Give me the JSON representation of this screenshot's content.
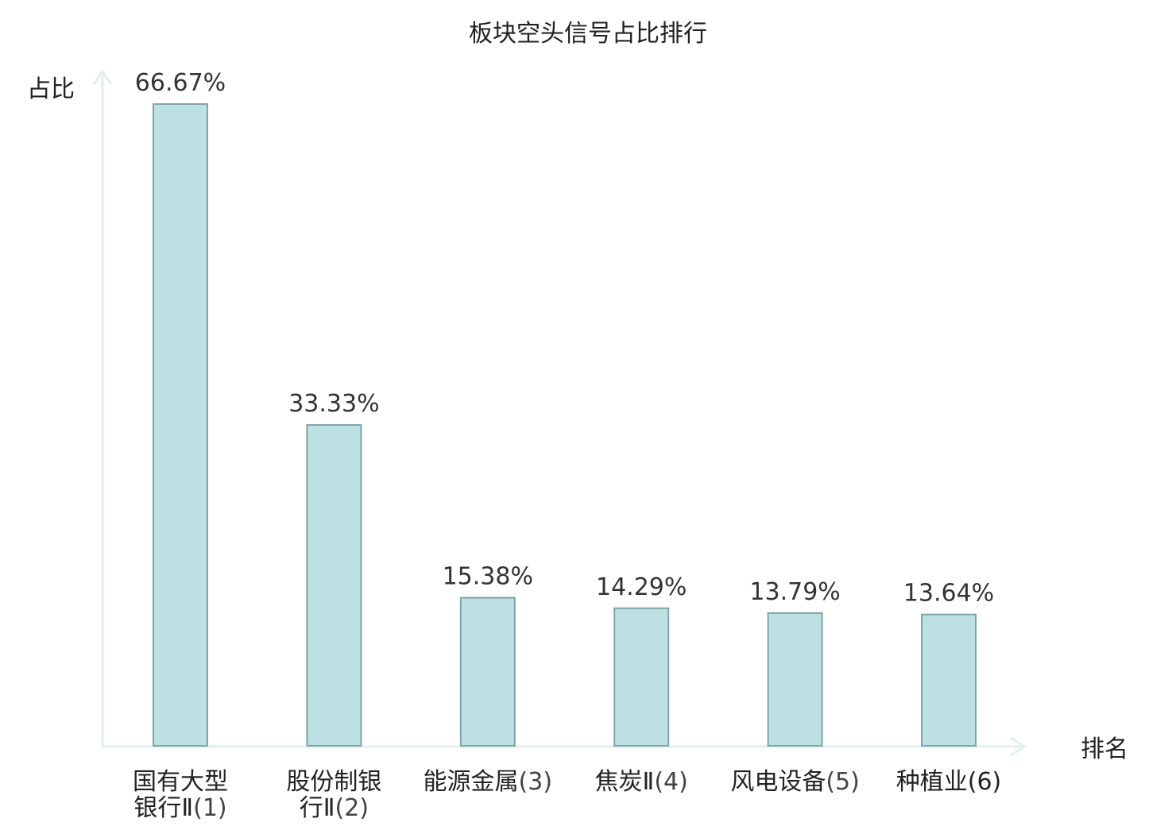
{
  "chart_data": {
    "type": "bar",
    "title": "板块空头信号占比排行",
    "xlabel": "排名",
    "ylabel": "占比",
    "ylim": [
      0,
      70
    ],
    "categories": [
      {
        "lines": [
          "国有大型",
          "银行Ⅱ"
        ],
        "rank": "(1)",
        "highlight": false
      },
      {
        "lines": [
          "股份制银",
          "行Ⅱ"
        ],
        "rank": "(2)",
        "highlight": false
      },
      {
        "lines": [
          "能源金属"
        ],
        "rank": "(3)",
        "highlight": false
      },
      {
        "lines": [
          "焦炭Ⅱ"
        ],
        "rank": "(4)",
        "highlight": false
      },
      {
        "lines": [
          "风电设备"
        ],
        "rank": "(5)",
        "highlight": false
      },
      {
        "lines": [
          "种植业"
        ],
        "rank": "(6)",
        "highlight": true
      }
    ],
    "values": [
      66.67,
      33.33,
      15.38,
      14.29,
      13.79,
      13.64
    ],
    "value_labels": [
      "66.67%",
      "33.33%",
      "15.38%",
      "14.29%",
      "13.79%",
      "13.64%"
    ],
    "grid": false,
    "legend": "none"
  },
  "colors": {
    "bar_fill": "#bde0e2",
    "bar_stroke": "#7fa5a8",
    "axis": "#dff0ee",
    "highlight_text": "#e00000",
    "text": "#222222"
  }
}
